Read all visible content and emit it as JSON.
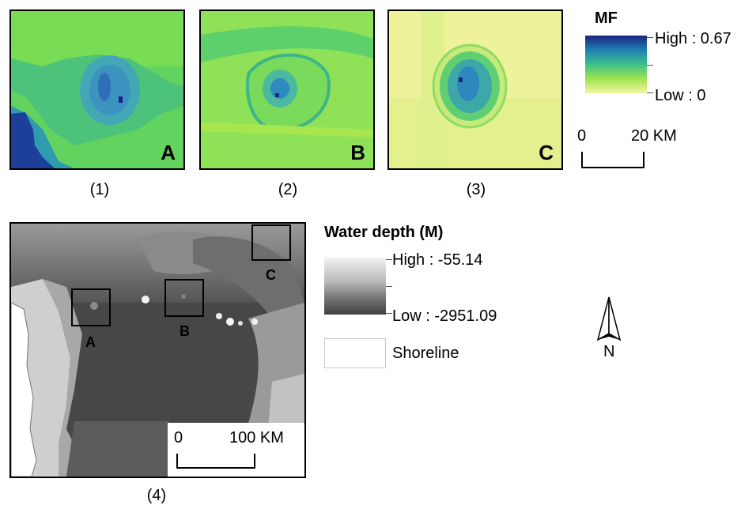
{
  "panels": [
    {
      "letter": "A",
      "caption": "(1)"
    },
    {
      "letter": "B",
      "caption": "(2)"
    },
    {
      "letter": "C",
      "caption": "(3)"
    }
  ],
  "mf_legend": {
    "title": "MF",
    "high_label": "High : 0.67",
    "low_label": "Low : 0",
    "colors": [
      "#1a237e",
      "#1f7fb3",
      "#3cc18a",
      "#9fe350",
      "#f5f5a0"
    ]
  },
  "mf_scale": {
    "start": "0",
    "end": "20 KM"
  },
  "depth_map": {
    "caption": "(4)",
    "boxes": [
      "A",
      "B",
      "C"
    ],
    "scale": {
      "start": "0",
      "end": "100 KM"
    }
  },
  "depth_legend": {
    "title": "Water depth (M)",
    "high_label": "High : -55.14",
    "low_label": "Low : -2951.09",
    "shoreline_label": "Shoreline"
  },
  "north_arrow": {
    "label": "N"
  }
}
